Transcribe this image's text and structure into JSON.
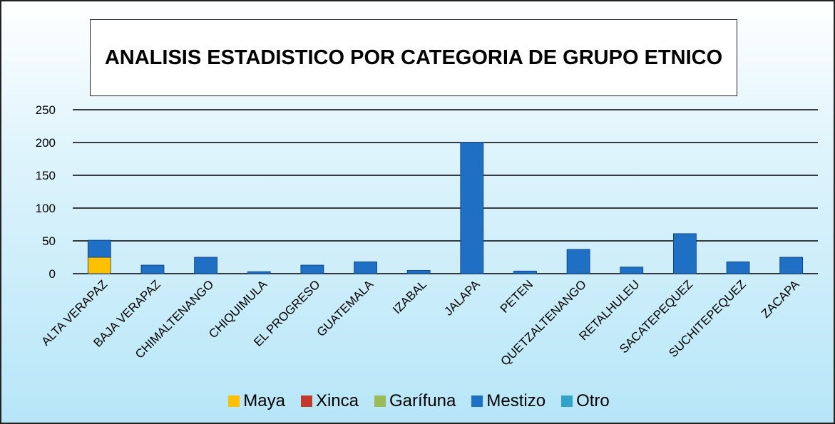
{
  "chart_data": {
    "type": "stacked-bar",
    "title": "ANALISIS ESTADISTICO POR CATEGORIA DE GRUPO ETNICO",
    "categories": [
      "ALTA VERAPAZ",
      "BAJA VERAPAZ",
      "CHIMALTENANGO",
      "CHIQUIMULA",
      "EL PROGRESO",
      "GUATEMALA",
      "IZABAL",
      "JALAPA",
      "PETEN",
      "QUETZALTENANGO",
      "RETALHULEU",
      "SACATEPEQUEZ",
      "SUCHITEPEQUEZ",
      "ZACAPA"
    ],
    "series": [
      {
        "name": "Maya",
        "color": "#ffc000",
        "values": [
          25,
          0,
          0,
          0,
          0,
          0,
          0,
          0,
          0,
          0,
          0,
          0,
          0,
          0
        ]
      },
      {
        "name": "Xinca",
        "color": "#c0392b",
        "values": [
          0,
          0,
          0,
          0,
          0,
          0,
          0,
          0,
          0,
          0,
          0,
          0,
          0,
          0
        ]
      },
      {
        "name": "Garífuna",
        "color": "#9bbb59",
        "values": [
          0,
          0,
          0,
          0,
          0,
          0,
          0,
          0,
          0,
          0,
          0,
          0,
          0,
          0
        ]
      },
      {
        "name": "Mestizo",
        "color": "#1f6fc5",
        "values": [
          26,
          13,
          25,
          3,
          13,
          18,
          5,
          200,
          4,
          37,
          10,
          61,
          18,
          25
        ]
      },
      {
        "name": "Otro",
        "color": "#31a2c8",
        "values": [
          0,
          0,
          0,
          0,
          0,
          0,
          0,
          0,
          0,
          0,
          0,
          0,
          0,
          0
        ]
      }
    ],
    "ylim": [
      0,
      250
    ],
    "yticks": [
      0,
      50,
      100,
      150,
      200,
      250
    ],
    "grid": true,
    "legend": "bottom"
  }
}
